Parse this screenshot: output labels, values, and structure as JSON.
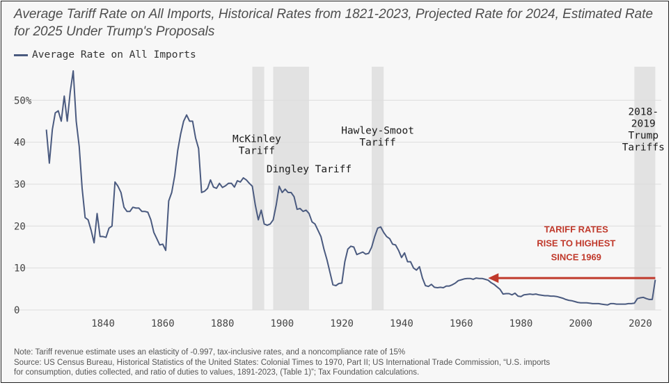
{
  "chart_data": {
    "type": "line",
    "title": "Average Tariff Rate on All Imports, Historical Rates from 1821-2023, Projected Rate for 2024, Estimated Rate for 2025 Under Trump's Proposals",
    "xlabel": "",
    "ylabel": "",
    "xlim": [
      1819,
      2027
    ],
    "ylim": [
      0,
      58
    ],
    "x_ticks": [
      1840,
      1860,
      1880,
      1900,
      1920,
      1940,
      1960,
      1980,
      2000,
      2020
    ],
    "y_ticks": [
      0,
      10,
      20,
      30,
      40,
      50
    ],
    "y_tick_labels": [
      "0",
      "10",
      "20",
      "30",
      "40",
      "50%"
    ],
    "grid": "horizontal",
    "legend_position": "top-left",
    "series": [
      {
        "name": "Average Rate on All Imports",
        "color": "#4a5a7f",
        "points": [
          [
            1821,
            43
          ],
          [
            1822,
            35
          ],
          [
            1823,
            43
          ],
          [
            1824,
            47
          ],
          [
            1825,
            47.5
          ],
          [
            1826,
            45
          ],
          [
            1827,
            51
          ],
          [
            1828,
            45
          ],
          [
            1829,
            52
          ],
          [
            1830,
            57
          ],
          [
            1831,
            45
          ],
          [
            1832,
            39
          ],
          [
            1833,
            29
          ],
          [
            1834,
            22
          ],
          [
            1835,
            21.5
          ],
          [
            1836,
            19
          ],
          [
            1837,
            16
          ],
          [
            1838,
            23
          ],
          [
            1839,
            17.5
          ],
          [
            1840,
            17.5
          ],
          [
            1841,
            17.3
          ],
          [
            1842,
            19.5
          ],
          [
            1843,
            20
          ],
          [
            1844,
            30.5
          ],
          [
            1845,
            29.5
          ],
          [
            1846,
            28
          ],
          [
            1847,
            24.5
          ],
          [
            1848,
            23.5
          ],
          [
            1849,
            23.5
          ],
          [
            1850,
            24.5
          ],
          [
            1851,
            24.3
          ],
          [
            1852,
            24.3
          ],
          [
            1853,
            23.5
          ],
          [
            1854,
            23.5
          ],
          [
            1855,
            23.3
          ],
          [
            1856,
            21.5
          ],
          [
            1857,
            18.5
          ],
          [
            1858,
            17
          ],
          [
            1859,
            15.5
          ],
          [
            1860,
            15.7
          ],
          [
            1861,
            14.2
          ],
          [
            1862,
            26
          ],
          [
            1863,
            28
          ],
          [
            1864,
            32
          ],
          [
            1865,
            38
          ],
          [
            1866,
            42
          ],
          [
            1867,
            45
          ],
          [
            1868,
            46.5
          ],
          [
            1869,
            45
          ],
          [
            1870,
            45
          ],
          [
            1871,
            41
          ],
          [
            1872,
            38.5
          ],
          [
            1873,
            28
          ],
          [
            1874,
            28.3
          ],
          [
            1875,
            29
          ],
          [
            1876,
            31
          ],
          [
            1877,
            29.3
          ],
          [
            1878,
            29
          ],
          [
            1879,
            30.2
          ],
          [
            1880,
            29.2
          ],
          [
            1881,
            29.6
          ],
          [
            1882,
            30.2
          ],
          [
            1883,
            30.2
          ],
          [
            1884,
            29.3
          ],
          [
            1885,
            30.8
          ],
          [
            1886,
            30.5
          ],
          [
            1887,
            31.5
          ],
          [
            1888,
            31
          ],
          [
            1889,
            30.2
          ],
          [
            1890,
            29.5
          ],
          [
            1891,
            25
          ],
          [
            1892,
            21.5
          ],
          [
            1893,
            23.8
          ],
          [
            1894,
            20.5
          ],
          [
            1895,
            20.2
          ],
          [
            1896,
            20.5
          ],
          [
            1897,
            21.5
          ],
          [
            1898,
            25
          ],
          [
            1899,
            29.5
          ],
          [
            1900,
            28
          ],
          [
            1901,
            28.8
          ],
          [
            1902,
            28
          ],
          [
            1903,
            28
          ],
          [
            1904,
            27
          ],
          [
            1905,
            24
          ],
          [
            1906,
            24.2
          ],
          [
            1907,
            23.5
          ],
          [
            1908,
            23.8
          ],
          [
            1909,
            23
          ],
          [
            1910,
            21
          ],
          [
            1911,
            20.5
          ],
          [
            1912,
            19
          ],
          [
            1913,
            17.5
          ],
          [
            1914,
            14.5
          ],
          [
            1915,
            12
          ],
          [
            1916,
            9
          ],
          [
            1917,
            6
          ],
          [
            1918,
            5.8
          ],
          [
            1919,
            6.3
          ],
          [
            1920,
            6.4
          ],
          [
            1921,
            11.5
          ],
          [
            1922,
            14.5
          ],
          [
            1923,
            15.2
          ],
          [
            1924,
            15
          ],
          [
            1925,
            13.2
          ],
          [
            1926,
            13.5
          ],
          [
            1927,
            13.8
          ],
          [
            1928,
            13.3
          ],
          [
            1929,
            13.5
          ],
          [
            1930,
            15
          ],
          [
            1931,
            17.5
          ],
          [
            1932,
            19.5
          ],
          [
            1933,
            19.8
          ],
          [
            1934,
            18.5
          ],
          [
            1935,
            17.5
          ],
          [
            1936,
            17
          ],
          [
            1937,
            15.7
          ],
          [
            1938,
            15.5
          ],
          [
            1939,
            14.2
          ],
          [
            1940,
            12.5
          ],
          [
            1941,
            13.6
          ],
          [
            1942,
            11.5
          ],
          [
            1943,
            11.5
          ],
          [
            1944,
            10
          ],
          [
            1945,
            9.5
          ],
          [
            1946,
            10.3
          ],
          [
            1947,
            7.6
          ],
          [
            1948,
            5.8
          ],
          [
            1949,
            5.6
          ],
          [
            1950,
            6.1
          ],
          [
            1951,
            5.4
          ],
          [
            1952,
            5.3
          ],
          [
            1953,
            5.4
          ],
          [
            1954,
            5.3
          ],
          [
            1955,
            5.7
          ],
          [
            1956,
            5.7
          ],
          [
            1957,
            6
          ],
          [
            1958,
            6.4
          ],
          [
            1959,
            7
          ],
          [
            1960,
            7.2
          ],
          [
            1961,
            7.4
          ],
          [
            1962,
            7.5
          ],
          [
            1963,
            7.5
          ],
          [
            1964,
            7.3
          ],
          [
            1965,
            7.6
          ],
          [
            1966,
            7.5
          ],
          [
            1967,
            7.5
          ],
          [
            1968,
            7.3
          ],
          [
            1969,
            7.1
          ],
          [
            1970,
            6.5
          ],
          [
            1971,
            6.1
          ],
          [
            1972,
            5.5
          ],
          [
            1973,
            4.9
          ],
          [
            1974,
            3.8
          ],
          [
            1975,
            3.9
          ],
          [
            1976,
            3.9
          ],
          [
            1977,
            3.6
          ],
          [
            1978,
            4
          ],
          [
            1979,
            3.3
          ],
          [
            1980,
            3.2
          ],
          [
            1981,
            3.6
          ],
          [
            1982,
            3.7
          ],
          [
            1983,
            3.8
          ],
          [
            1984,
            3.7
          ],
          [
            1985,
            3.8
          ],
          [
            1986,
            3.6
          ],
          [
            1987,
            3.5
          ],
          [
            1988,
            3.4
          ],
          [
            1989,
            3.4
          ],
          [
            1990,
            3.3
          ],
          [
            1991,
            3.3
          ],
          [
            1992,
            3.2
          ],
          [
            1993,
            3
          ],
          [
            1994,
            2.8
          ],
          [
            1995,
            2.5
          ],
          [
            1996,
            2.3
          ],
          [
            1997,
            2.2
          ],
          [
            1998,
            2
          ],
          [
            1999,
            1.8
          ],
          [
            2000,
            1.7
          ],
          [
            2001,
            1.7
          ],
          [
            2002,
            1.7
          ],
          [
            2003,
            1.6
          ],
          [
            2004,
            1.5
          ],
          [
            2005,
            1.5
          ],
          [
            2006,
            1.5
          ],
          [
            2007,
            1.4
          ],
          [
            2008,
            1.3
          ],
          [
            2009,
            1.2
          ],
          [
            2010,
            1.5
          ],
          [
            2011,
            1.5
          ],
          [
            2012,
            1.4
          ],
          [
            2013,
            1.4
          ],
          [
            2014,
            1.4
          ],
          [
            2015,
            1.4
          ],
          [
            2016,
            1.5
          ],
          [
            2017,
            1.5
          ],
          [
            2018,
            1.6
          ],
          [
            2019,
            2.7
          ],
          [
            2020,
            2.9
          ],
          [
            2021,
            3
          ],
          [
            2022,
            2.7
          ],
          [
            2023,
            2.5
          ],
          [
            2024,
            2.5
          ],
          [
            2025,
            7.2
          ]
        ]
      }
    ],
    "shaded_periods": [
      {
        "start": 1890,
        "end": 1894,
        "color": "#e2e2e2"
      },
      {
        "start": 1897,
        "end": 1909,
        "color": "#e2e2e2"
      },
      {
        "start": 1930,
        "end": 1934,
        "color": "#e2e2e2"
      },
      {
        "start": 2018,
        "end": 2025,
        "color": "#e2e2e2"
      }
    ],
    "annotations": [
      {
        "lines": [
          "McKinley",
          "Tariff"
        ],
        "x": 1891.5,
        "y": 40,
        "anchor": "middle"
      },
      {
        "lines": [
          "Dingley Tariff"
        ],
        "x": 1909,
        "y": 32.8,
        "anchor": "middle"
      },
      {
        "lines": [
          "Hawley-Smoot",
          "Tariff"
        ],
        "x": 1932,
        "y": 42,
        "anchor": "middle"
      },
      {
        "lines": [
          "2018-",
          "2019",
          "Trump",
          "Tariffs"
        ],
        "x": 2021,
        "y": 46.5,
        "anchor": "middle"
      }
    ],
    "callout": {
      "lines": [
        "TARIFF RATES",
        "RISE TO HIGHEST",
        "SINCE 1969"
      ],
      "color": "#c0392b",
      "x": 1998.5,
      "y": 18.5,
      "arrow_from": [
        2025,
        7.6
      ],
      "arrow_to": [
        1969,
        7.6
      ]
    }
  },
  "note": {
    "line1": "Note: Tariff revenue estimate uses an elasticity of -0.997, tax-inclusive rates, and a noncompliance rate of 15%",
    "line2": "Source: US Census Bureau, Historical Statistics of the United States: Colonial Times to 1970, Part II; US International Trade Commission, “U.S. imports",
    "line3": "for consumption, duties collected, and ratio of duties to values, 1891-2023, (Table 1)”; Tax Foundation calculations."
  }
}
